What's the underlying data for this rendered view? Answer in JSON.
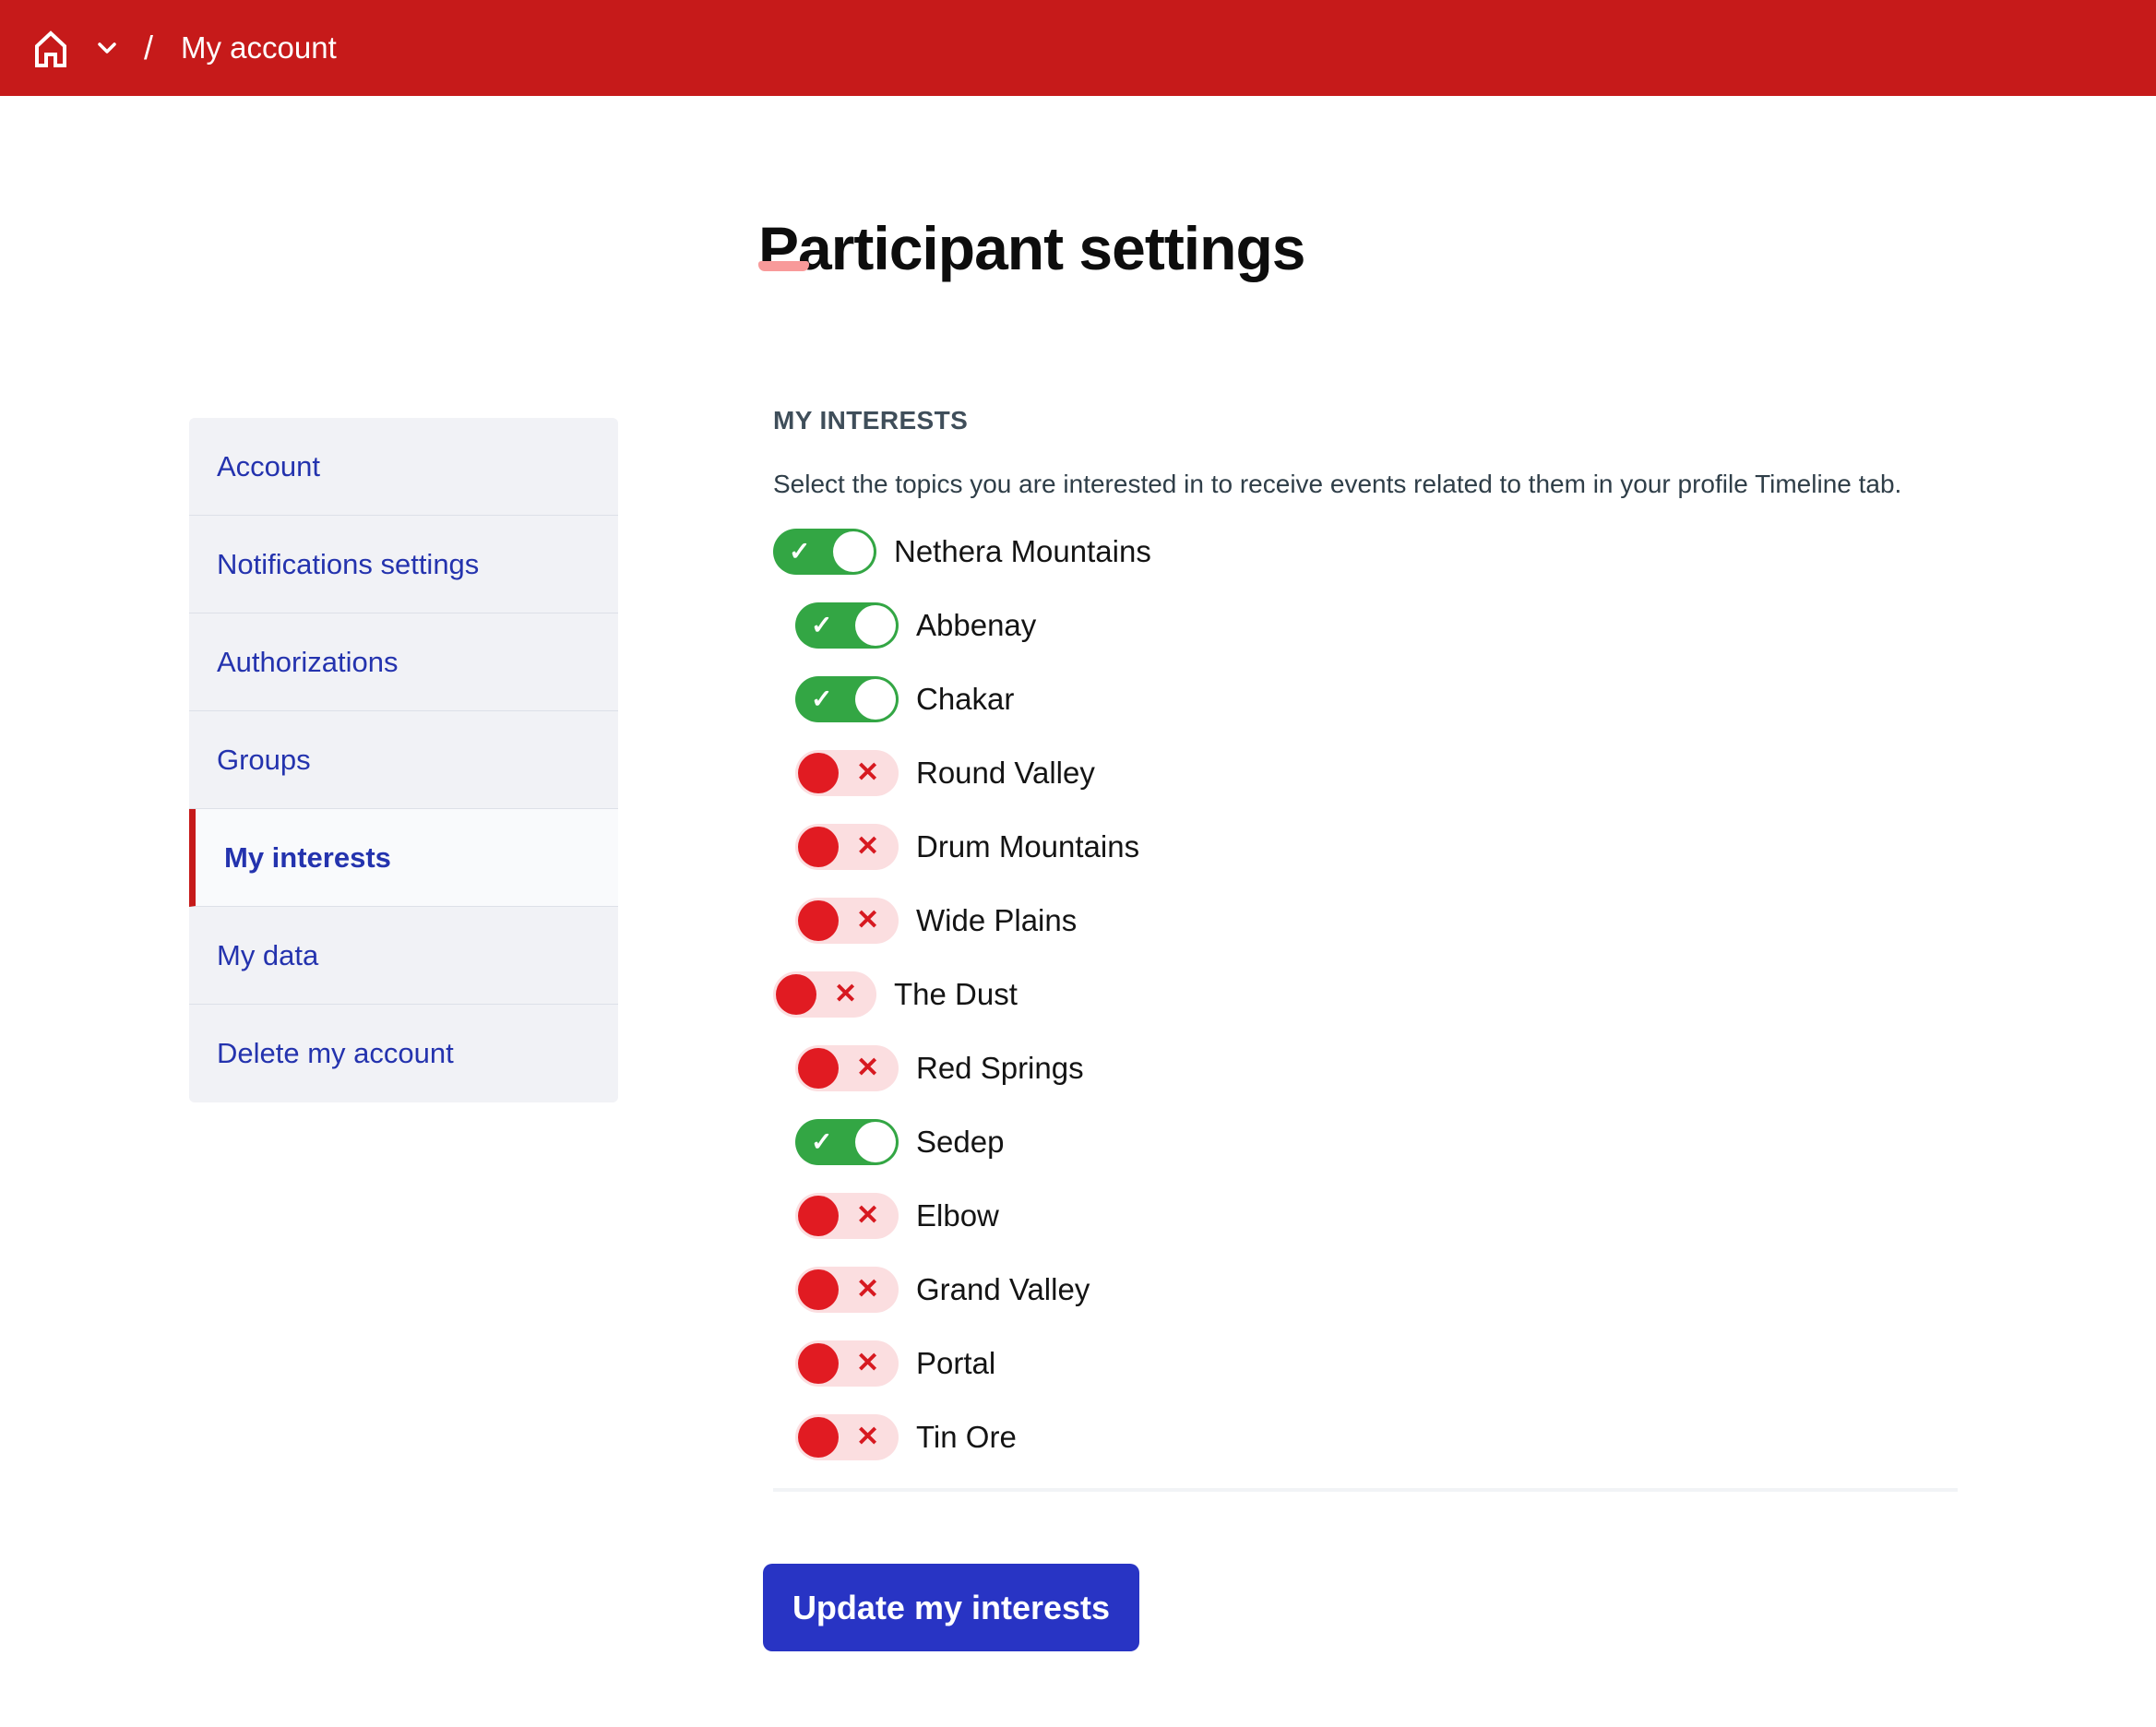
{
  "topbar": {
    "breadcrumb": {
      "home_icon": "home-icon",
      "chevron_icon": "chevron-down-icon",
      "separator": "/",
      "current": "My account"
    }
  },
  "page": {
    "title": "Participant settings"
  },
  "sidebar": {
    "items": [
      {
        "label": "Account",
        "active": false
      },
      {
        "label": "Notifications settings",
        "active": false
      },
      {
        "label": "Authorizations",
        "active": false
      },
      {
        "label": "Groups",
        "active": false
      },
      {
        "label": "My interests",
        "active": true
      },
      {
        "label": "My data",
        "active": false
      },
      {
        "label": "Delete my account",
        "active": false
      }
    ]
  },
  "interests": {
    "heading": "MY INTERESTS",
    "description": "Select the topics you are interested in to receive events related to them in your profile Timeline tab.",
    "toggles": [
      {
        "label": "Nethera Mountains",
        "on": true,
        "level": 0
      },
      {
        "label": "Abbenay",
        "on": true,
        "level": 1
      },
      {
        "label": "Chakar",
        "on": true,
        "level": 1
      },
      {
        "label": "Round Valley",
        "on": false,
        "level": 1
      },
      {
        "label": "Drum Mountains",
        "on": false,
        "level": 1
      },
      {
        "label": "Wide Plains",
        "on": false,
        "level": 1
      },
      {
        "label": "The Dust",
        "on": false,
        "level": 0
      },
      {
        "label": "Red Springs",
        "on": false,
        "level": 1
      },
      {
        "label": "Sedep",
        "on": true,
        "level": 1
      },
      {
        "label": "Elbow",
        "on": false,
        "level": 1
      },
      {
        "label": "Grand Valley",
        "on": false,
        "level": 1
      },
      {
        "label": "Portal",
        "on": false,
        "level": 1
      },
      {
        "label": "Tin Ore",
        "on": false,
        "level": 1
      }
    ],
    "update_button": "Update my interests"
  },
  "icons": {
    "check_glyph": "✓",
    "x_glyph": "✕"
  },
  "colors": {
    "topbar_red": "#c61a1a",
    "title_underline_pink": "#f89a9a",
    "sidebar_link_blue": "#2433ae",
    "active_marker_red": "#c61a1a",
    "heading_slate": "#3f4e5a",
    "toggle_on_green": "#33a644",
    "toggle_off_track_pink": "#fbdee0",
    "toggle_off_knob_red": "#e11b22",
    "button_blue": "#2834c4"
  }
}
